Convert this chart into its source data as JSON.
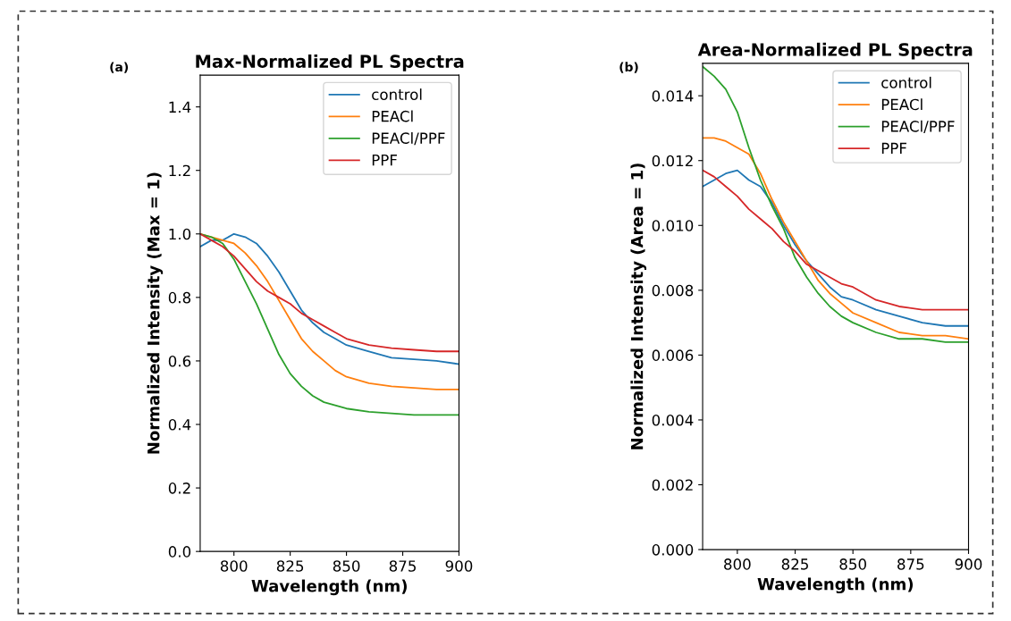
{
  "chart_data": [
    {
      "type": "line",
      "title": "Max-Normalized PL Spectra",
      "xlabel": "Wavelength (nm)",
      "ylabel": "Normalized Intensity (Max = 1)",
      "annotations": [
        "(a)"
      ],
      "x": [
        785,
        790,
        795,
        800,
        805,
        810,
        815,
        820,
        825,
        830,
        835,
        840,
        845,
        850,
        860,
        870,
        880,
        890,
        900
      ],
      "xlim": [
        785,
        900
      ],
      "xticks": [
        800,
        825,
        850,
        875,
        900
      ],
      "ylim": [
        0,
        1.5
      ],
      "yticks": [
        {
          "value": 0,
          "label": "0.0"
        },
        0.2,
        0.4,
        0.6,
        0.8,
        {
          "value": 1,
          "label": "1.0"
        },
        1.2,
        1.4
      ],
      "legend": "top right",
      "grid": false,
      "line_style": "solid",
      "marker": "none",
      "series": [
        {
          "name": "control",
          "color": "#1f77b4",
          "values": [
            0.96,
            0.98,
            0.98,
            1.0,
            0.99,
            0.97,
            0.93,
            0.88,
            0.82,
            0.76,
            0.72,
            0.69,
            0.67,
            0.65,
            0.63,
            0.61,
            0.605,
            0.6,
            0.59
          ]
        },
        {
          "name": "PEACl",
          "color": "#ff7f0e",
          "values": [
            1.0,
            0.99,
            0.98,
            0.97,
            0.94,
            0.9,
            0.85,
            0.79,
            0.73,
            0.67,
            0.63,
            0.6,
            0.57,
            0.55,
            0.53,
            0.52,
            0.515,
            0.51,
            0.51
          ]
        },
        {
          "name": "PEACl/PPF",
          "color": "#2ca02c",
          "values": [
            1.0,
            0.99,
            0.97,
            0.92,
            0.85,
            0.78,
            0.7,
            0.62,
            0.56,
            0.52,
            0.49,
            0.47,
            0.46,
            0.45,
            0.44,
            0.435,
            0.43,
            0.43,
            0.43
          ]
        },
        {
          "name": "PPF",
          "color": "#d62728",
          "values": [
            1.0,
            0.98,
            0.96,
            0.93,
            0.89,
            0.85,
            0.82,
            0.8,
            0.78,
            0.75,
            0.73,
            0.71,
            0.69,
            0.67,
            0.65,
            0.64,
            0.635,
            0.63,
            0.63
          ]
        }
      ]
    },
    {
      "type": "line",
      "title": "Area-Normalized PL Spectra",
      "xlabel": "Wavelength (nm)",
      "ylabel": "Normalized Intensity (Area = 1)",
      "annotations": [
        "(b)"
      ],
      "x": [
        785,
        790,
        795,
        800,
        805,
        810,
        815,
        820,
        825,
        830,
        835,
        840,
        845,
        850,
        860,
        870,
        880,
        890,
        900
      ],
      "xlim": [
        785,
        900
      ],
      "xticks": [
        800,
        825,
        850,
        875,
        900
      ],
      "ylim": [
        0,
        0.015
      ],
      "yticks": [
        {
          "value": 0,
          "label": "0.000"
        },
        0.002,
        0.004,
        0.006,
        0.008,
        {
          "value": 0.01,
          "label": "0.010"
        },
        0.012,
        0.014
      ],
      "legend": "top right",
      "grid": false,
      "line_style": "solid",
      "marker": "none",
      "series": [
        {
          "name": "control",
          "color": "#1f77b4",
          "values": [
            0.0112,
            0.0114,
            0.0116,
            0.0117,
            0.0114,
            0.0112,
            0.0107,
            0.01,
            0.0094,
            0.0089,
            0.0085,
            0.0081,
            0.0078,
            0.0077,
            0.0074,
            0.0072,
            0.007,
            0.0069,
            0.0069
          ]
        },
        {
          "name": "PEACl",
          "color": "#ff7f0e",
          "values": [
            0.0127,
            0.0127,
            0.0126,
            0.0124,
            0.0122,
            0.0116,
            0.0108,
            0.0101,
            0.0095,
            0.0089,
            0.0083,
            0.0079,
            0.0076,
            0.0073,
            0.007,
            0.0067,
            0.0066,
            0.0066,
            0.0065
          ]
        },
        {
          "name": "PEACl/PPF",
          "color": "#2ca02c",
          "values": [
            0.0149,
            0.0146,
            0.0142,
            0.0135,
            0.0124,
            0.0114,
            0.0106,
            0.0099,
            0.009,
            0.0084,
            0.0079,
            0.0075,
            0.0072,
            0.007,
            0.0067,
            0.0065,
            0.0065,
            0.0064,
            0.0064
          ]
        },
        {
          "name": "PPF",
          "color": "#d62728",
          "values": [
            0.0117,
            0.0115,
            0.0112,
            0.0109,
            0.0105,
            0.0102,
            0.0099,
            0.0095,
            0.0092,
            0.0088,
            0.0086,
            0.0084,
            0.0082,
            0.0081,
            0.0077,
            0.0075,
            0.0074,
            0.0074,
            0.0074
          ]
        }
      ]
    }
  ]
}
